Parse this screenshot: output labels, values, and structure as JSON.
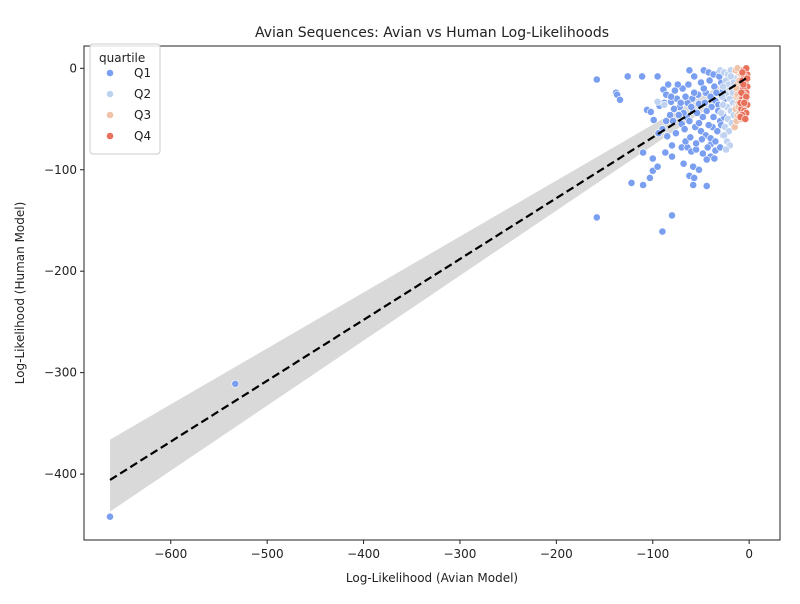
{
  "chart_data": {
    "type": "scatter",
    "title": "Avian Sequences: Avian vs Human Log-Likelihoods",
    "xlabel": "Log-Likelihood (Avian Model)",
    "ylabel": "Log-Likelihood (Human Model)",
    "xlim": [
      -690,
      32
    ],
    "ylim": [
      -465,
      22
    ],
    "xticks": [
      -600,
      -500,
      -400,
      -300,
      -200,
      -100,
      0
    ],
    "yticks": [
      -400,
      -300,
      -200,
      -100,
      0
    ],
    "xtick_labels": [
      "−600",
      "−500",
      "−400",
      "−300",
      "−200",
      "−100",
      "0"
    ],
    "ytick_labels": [
      "−400",
      "−300",
      "−200",
      "−100",
      "0"
    ],
    "grid": false,
    "legend": {
      "title": "quartile",
      "position": "top-left",
      "entries": [
        {
          "name": "Q1",
          "color": "#7b9ff0"
        },
        {
          "name": "Q2",
          "color": "#bfd3f0"
        },
        {
          "name": "Q3",
          "color": "#f0c2a8"
        },
        {
          "name": "Q4",
          "color": "#e8715c"
        }
      ]
    },
    "regression": {
      "style": "dashed",
      "color": "#000000",
      "x_range": [
        -663,
        -3
      ],
      "slope": 0.6,
      "intercept": -8,
      "ci_band": {
        "color": "#d9d9d9",
        "lower_at_x_min": -437,
        "upper_at_x_min": -366,
        "lower_at_x_max": -14,
        "upper_at_x_max": -2
      }
    },
    "series": [
      {
        "name": "Q1",
        "color": "#7b9ff0",
        "points": [
          [
            -663,
            -442
          ],
          [
            -533,
            -311
          ],
          [
            -158,
            -147
          ],
          [
            -158,
            -11
          ],
          [
            -126,
            -8
          ],
          [
            -111,
            -8
          ],
          [
            -95,
            -8
          ],
          [
            -138,
            -24
          ],
          [
            -137,
            -26
          ],
          [
            -134,
            -31
          ],
          [
            -106,
            -41
          ],
          [
            -102,
            -43
          ],
          [
            -99,
            -51
          ],
          [
            -93,
            -37
          ],
          [
            -89,
            -21
          ],
          [
            -86,
            -26
          ],
          [
            -84,
            -16
          ],
          [
            -81,
            -33
          ],
          [
            -110,
            -83
          ],
          [
            -100,
            -89
          ],
          [
            -100,
            -101
          ],
          [
            -95,
            -97
          ],
          [
            -122,
            -113
          ],
          [
            -110,
            -115
          ],
          [
            -103,
            -108
          ],
          [
            -80,
            -145
          ],
          [
            -90,
            -161
          ],
          [
            -68,
            -94
          ],
          [
            -62,
            -106
          ],
          [
            -57,
            -108
          ],
          [
            -58,
            -115
          ],
          [
            -44,
            -116
          ],
          [
            -58,
            -97
          ],
          [
            -52,
            -100
          ],
          [
            -80,
            -76
          ],
          [
            -87,
            -83
          ],
          [
            -80,
            -87
          ],
          [
            -70,
            -78
          ],
          [
            -64,
            -78
          ],
          [
            -66,
            -72
          ],
          [
            -60,
            -82
          ],
          [
            -55,
            -80
          ],
          [
            -48,
            -84
          ],
          [
            -40,
            -87
          ],
          [
            -36,
            -89
          ],
          [
            -44,
            -90
          ],
          [
            -35,
            -81
          ],
          [
            -40,
            -75
          ],
          [
            -30,
            -78
          ],
          [
            -62,
            -2
          ],
          [
            -57,
            -8
          ],
          [
            -50,
            -14
          ],
          [
            -47,
            -2
          ],
          [
            -42,
            -4
          ],
          [
            -37,
            -6
          ],
          [
            -31,
            -3
          ],
          [
            -45,
            -24
          ],
          [
            -40,
            -28
          ],
          [
            -35,
            -32
          ],
          [
            -52,
            -35
          ],
          [
            -58,
            -42
          ],
          [
            -65,
            -48
          ],
          [
            -70,
            -55
          ],
          [
            -75,
            -30
          ],
          [
            -72,
            -38
          ],
          [
            -68,
            -44
          ],
          [
            -62,
            -52
          ],
          [
            -56,
            -58
          ],
          [
            -50,
            -62
          ],
          [
            -45,
            -66
          ],
          [
            -40,
            -69
          ],
          [
            -35,
            -72
          ],
          [
            -30,
            -52
          ],
          [
            -28,
            -44
          ],
          [
            -32,
            -36
          ],
          [
            -36,
            -18
          ],
          [
            -41,
            -12
          ],
          [
            -47,
            -20
          ],
          [
            -53,
            -26
          ],
          [
            -59,
            -30
          ],
          [
            -64,
            -34
          ],
          [
            -69,
            -20
          ],
          [
            -74,
            -16
          ],
          [
            -78,
            -40
          ],
          [
            -82,
            -46
          ],
          [
            -86,
            -52
          ],
          [
            -90,
            -60
          ],
          [
            -94,
            -64
          ],
          [
            -85,
            -67
          ],
          [
            -76,
            -64
          ],
          [
            -67,
            -60
          ],
          [
            -61,
            -68
          ],
          [
            -55,
            -74
          ],
          [
            -49,
            -70
          ],
          [
            -43,
            -78
          ],
          [
            -38,
            -58
          ],
          [
            -33,
            -62
          ],
          [
            -27,
            -66
          ],
          [
            -25,
            -30
          ],
          [
            -27,
            -22
          ],
          [
            -29,
            -14
          ],
          [
            -31,
            -8
          ],
          [
            -34,
            -24
          ],
          [
            -39,
            -38
          ],
          [
            -44,
            -42
          ],
          [
            -48,
            -48
          ],
          [
            -52,
            -54
          ],
          [
            -57,
            -24
          ],
          [
            -63,
            -16
          ],
          [
            -66,
            -28
          ],
          [
            -71,
            -34
          ],
          [
            -77,
            -22
          ],
          [
            -81,
            -28
          ],
          [
            -88,
            -34
          ],
          [
            -79,
            -52
          ],
          [
            -73,
            -46
          ],
          [
            -60,
            -38
          ],
          [
            -54,
            -44
          ],
          [
            -46,
            -34
          ],
          [
            -42,
            -56
          ],
          [
            -37,
            -48
          ],
          [
            -32,
            -42
          ],
          [
            -29,
            -56
          ],
          [
            -26,
            -48
          ]
        ]
      },
      {
        "name": "Q2",
        "color": "#bfd3f0",
        "points": [
          [
            -95,
            -33
          ],
          [
            -88,
            -36
          ],
          [
            -30,
            -2
          ],
          [
            -26,
            -4
          ],
          [
            -22,
            -6
          ],
          [
            -19,
            -2
          ],
          [
            -24,
            -12
          ],
          [
            -21,
            -16
          ],
          [
            -18,
            -20
          ],
          [
            -24,
            -26
          ],
          [
            -20,
            -30
          ],
          [
            -17,
            -34
          ],
          [
            -23,
            -38
          ],
          [
            -19,
            -42
          ],
          [
            -16,
            -46
          ],
          [
            -22,
            -50
          ],
          [
            -18,
            -54
          ],
          [
            -25,
            -58
          ],
          [
            -21,
            -62
          ],
          [
            -26,
            -66
          ],
          [
            -23,
            -72
          ],
          [
            -20,
            -76
          ],
          [
            -24,
            -80
          ],
          [
            -27,
            -36
          ],
          [
            -28,
            -28
          ],
          [
            -15,
            -10
          ],
          [
            -17,
            -24
          ],
          [
            -14,
            -38
          ],
          [
            -19,
            -8
          ],
          [
            -16,
            -14
          ],
          [
            -27,
            -18
          ],
          [
            -29,
            -44
          ]
        ]
      },
      {
        "name": "Q3",
        "color": "#f0c2a8",
        "points": [
          [
            -15,
            -58
          ],
          [
            -13,
            -52
          ],
          [
            -12,
            -46
          ],
          [
            -14,
            -40
          ],
          [
            -11,
            -34
          ],
          [
            -13,
            -28
          ],
          [
            -10,
            -22
          ],
          [
            -12,
            -16
          ],
          [
            -9,
            -10
          ],
          [
            -11,
            -4
          ],
          [
            -14,
            -2
          ],
          [
            -8,
            -6
          ],
          [
            -10,
            -12
          ],
          [
            -13,
            -20
          ],
          [
            -12,
            -26
          ],
          [
            -9,
            -30
          ],
          [
            -11,
            -38
          ],
          [
            -10,
            -44
          ],
          [
            -8,
            -50
          ],
          [
            -12,
            0
          ]
        ]
      },
      {
        "name": "Q4",
        "color": "#e8715c",
        "points": [
          [
            -6,
            -2
          ],
          [
            -4,
            -4
          ],
          [
            -2,
            -6
          ],
          [
            -3,
            0
          ],
          [
            -5,
            -8
          ],
          [
            -7,
            -12
          ],
          [
            -4,
            -14
          ],
          [
            -2,
            -18
          ],
          [
            -6,
            -20
          ],
          [
            -3,
            -24
          ],
          [
            -5,
            -26
          ],
          [
            -7,
            -30
          ],
          [
            -4,
            -32
          ],
          [
            -2,
            -36
          ],
          [
            -6,
            -38
          ],
          [
            -8,
            -40
          ],
          [
            -5,
            -42
          ],
          [
            -3,
            -44
          ],
          [
            -7,
            -46
          ],
          [
            -9,
            -48
          ],
          [
            -4,
            -50
          ],
          [
            -6,
            -16
          ],
          [
            -8,
            -24
          ],
          [
            -3,
            -28
          ],
          [
            -9,
            -34
          ],
          [
            -5,
            -34
          ],
          [
            -7,
            -4
          ],
          [
            -2,
            -10
          ]
        ]
      }
    ]
  }
}
